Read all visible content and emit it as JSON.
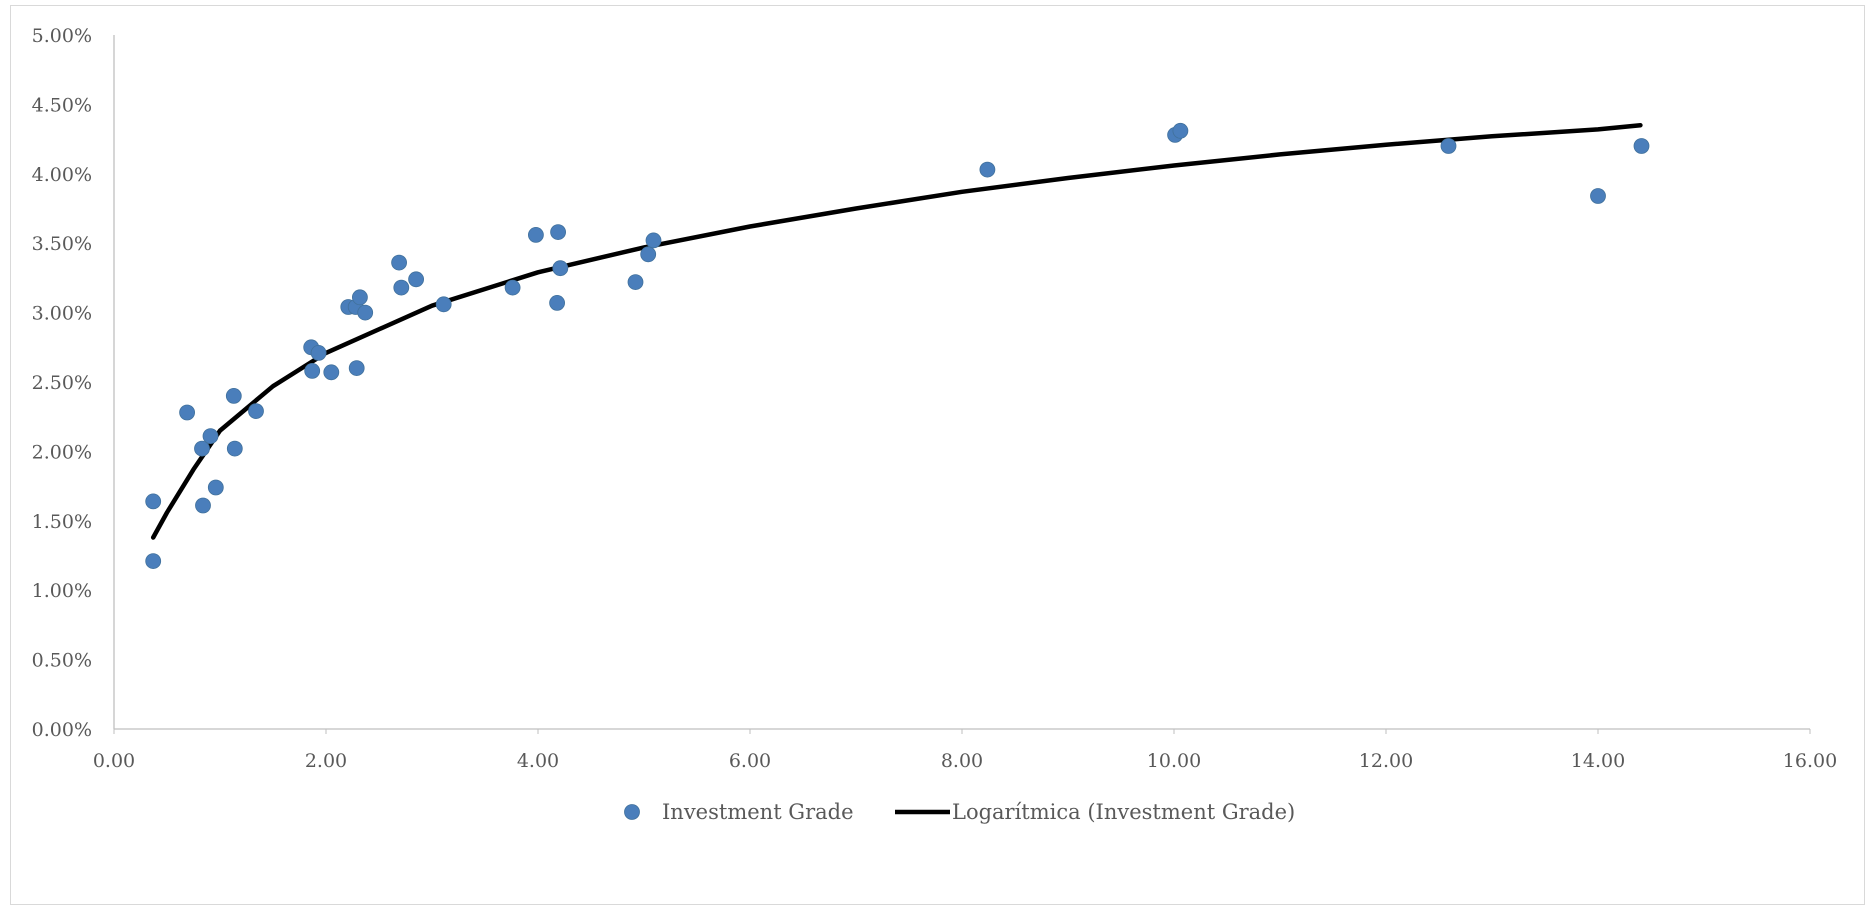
{
  "chart_data": {
    "type": "scatter",
    "title": "",
    "xlabel": "",
    "ylabel": "",
    "xlim": [
      0,
      16
    ],
    "ylim": [
      0,
      0.05
    ],
    "x_ticks": [
      0,
      2,
      4,
      6,
      8,
      10,
      12,
      14,
      16
    ],
    "y_ticks": [
      0,
      0.005,
      0.01,
      0.015,
      0.02,
      0.025,
      0.03,
      0.035,
      0.04,
      0.045,
      0.05
    ],
    "x_tick_labels": [
      "0.00",
      "2.00",
      "4.00",
      "6.00",
      "8.00",
      "10.00",
      "12.00",
      "14.00",
      "16.00"
    ],
    "y_tick_labels": [
      "0.00%",
      "0.50%",
      "1.00%",
      "1.50%",
      "2.00%",
      "2.50%",
      "3.00%",
      "3.50%",
      "4.00%",
      "4.50%",
      "5.00%"
    ],
    "grid": false,
    "legend_position": "bottom",
    "series": [
      {
        "name": "Investment Grade",
        "type": "scatter",
        "color": "#4a7ebb",
        "points": [
          [
            0.37,
            0.0121
          ],
          [
            0.37,
            0.0164
          ],
          [
            0.69,
            0.0228
          ],
          [
            0.83,
            0.0202
          ],
          [
            0.84,
            0.0161
          ],
          [
            0.91,
            0.0211
          ],
          [
            0.96,
            0.0174
          ],
          [
            1.13,
            0.024
          ],
          [
            1.14,
            0.0202
          ],
          [
            1.34,
            0.0229
          ],
          [
            1.86,
            0.0275
          ],
          [
            1.87,
            0.0258
          ],
          [
            1.93,
            0.0271
          ],
          [
            2.05,
            0.0257
          ],
          [
            2.21,
            0.0304
          ],
          [
            2.28,
            0.0304
          ],
          [
            2.29,
            0.026
          ],
          [
            2.32,
            0.0311
          ],
          [
            2.37,
            0.03
          ],
          [
            2.69,
            0.0336
          ],
          [
            2.71,
            0.0318
          ],
          [
            2.85,
            0.0324
          ],
          [
            3.11,
            0.0306
          ],
          [
            3.76,
            0.0318
          ],
          [
            3.98,
            0.0356
          ],
          [
            4.18,
            0.0307
          ],
          [
            4.19,
            0.0358
          ],
          [
            4.21,
            0.0332
          ],
          [
            4.92,
            0.0322
          ],
          [
            5.04,
            0.0342
          ],
          [
            5.09,
            0.0352
          ],
          [
            8.24,
            0.0403
          ],
          [
            10.01,
            0.0428
          ],
          [
            10.06,
            0.0431
          ],
          [
            12.59,
            0.042
          ],
          [
            14.0,
            0.0384
          ],
          [
            14.41,
            0.042
          ]
        ]
      },
      {
        "name": "Logarítmica (Investment Grade)",
        "type": "trendline-logarithmic",
        "color": "#000000",
        "points": [
          [
            0.37,
            0.0138
          ],
          [
            0.5,
            0.0156
          ],
          [
            0.75,
            0.0187
          ],
          [
            1.0,
            0.0215
          ],
          [
            1.5,
            0.0247
          ],
          [
            2.0,
            0.0271
          ],
          [
            3.0,
            0.0305
          ],
          [
            4.0,
            0.0329
          ],
          [
            5.0,
            0.0347
          ],
          [
            6.0,
            0.0362
          ],
          [
            7.0,
            0.0375
          ],
          [
            8.0,
            0.0387
          ],
          [
            9.0,
            0.0397
          ],
          [
            10.0,
            0.0406
          ],
          [
            11.0,
            0.0414
          ],
          [
            12.0,
            0.0421
          ],
          [
            13.0,
            0.0427
          ],
          [
            14.0,
            0.0432
          ],
          [
            14.4,
            0.0435
          ]
        ]
      }
    ]
  }
}
